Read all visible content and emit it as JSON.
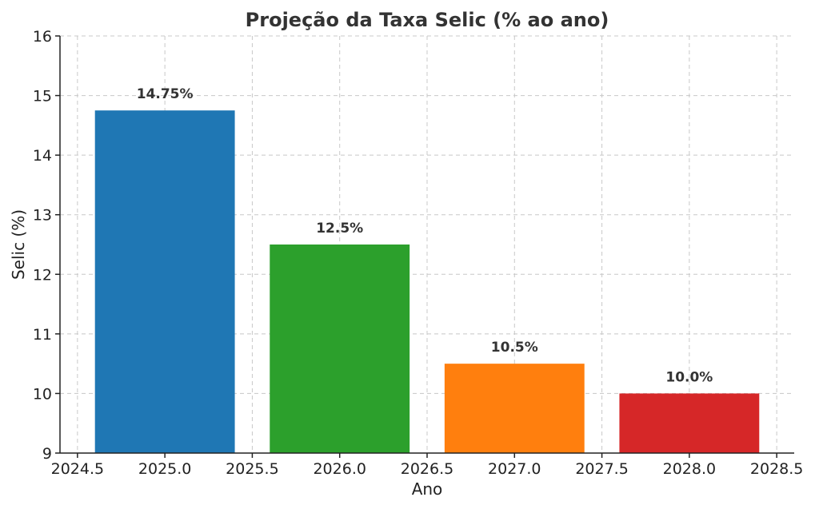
{
  "chart_data": {
    "type": "bar",
    "title": "Projeção da Taxa Selic (% ao ano)",
    "xlabel": "Ano",
    "ylabel": "Selic (%)",
    "x": [
      2025,
      2026,
      2027,
      2028
    ],
    "values": [
      14.75,
      12.5,
      10.5,
      10.0
    ],
    "data_labels": [
      "14.75%",
      "12.5%",
      "10.5%",
      "10.0%"
    ],
    "bar_width": 0.8,
    "colors": [
      "#1f77b4",
      "#2ca02c",
      "#ff7f0e",
      "#d62728"
    ],
    "xlim": [
      2024.4,
      2028.6
    ],
    "ylim": [
      9,
      16
    ],
    "xticks": [
      2024.5,
      2025.0,
      2025.5,
      2026.0,
      2026.5,
      2027.0,
      2027.5,
      2028.0,
      2028.5
    ],
    "xtick_labels": [
      "2024.5",
      "2025.0",
      "2025.5",
      "2026.0",
      "2026.5",
      "2027.0",
      "2027.5",
      "2028.0",
      "2028.5"
    ],
    "yticks": [
      9,
      10,
      11,
      12,
      13,
      14,
      15,
      16
    ],
    "ytick_labels": [
      "9",
      "10",
      "11",
      "12",
      "13",
      "14",
      "15",
      "16"
    ],
    "grid": true,
    "legend": "none"
  }
}
